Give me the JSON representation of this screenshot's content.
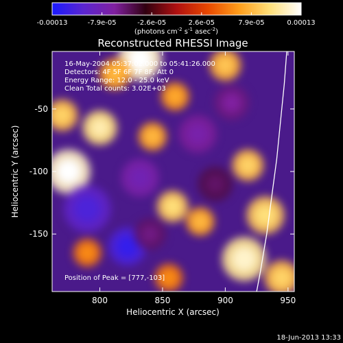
{
  "colorbar": {
    "tick_labels": [
      "-0.00013",
      "-7.9e-05",
      "-2.6e-05",
      "2.6e-05",
      "7.9e-05",
      "0.00013"
    ],
    "units_prefix": "(photons cm",
    "units_exp1": "-2",
    "units_mid": " s",
    "units_exp2": "-1",
    "units_mid2": " asec",
    "units_exp3": "-2",
    "units_suffix": ")",
    "range": [
      -0.00013,
      0.00013
    ],
    "stops": [
      "#1a1aff",
      "#5a25d0",
      "#8020a0",
      "#300010",
      "#b01010",
      "#e84800",
      "#ff9d1a",
      "#ffe07a",
      "#ffffff"
    ]
  },
  "chart_data": {
    "type": "heatmap",
    "title": "Reconstructed RHESSI Image",
    "xlabel": "Heliocentric X (arcsec)",
    "ylabel": "Heliocentric Y (arcsec)",
    "xlim": [
      762,
      955
    ],
    "ylim": [
      -196,
      -4
    ],
    "x_ticks": [
      800,
      850,
      900,
      950
    ],
    "y_ticks": [
      -50,
      -100,
      -150
    ],
    "annotations": [
      "16-May-2004 05:37:02.000 to 05:41:26.000",
      "Detectors: 4F 5F 6F 7F 8F, Att 0",
      "Energy Range: 12.0 - 25.0 keV",
      "Clean    Total counts: 3.02E+03"
    ],
    "peak_label": "Position of Peak = [777,-103]",
    "peak": [
      777,
      -103
    ],
    "limb_points": [
      [
        949,
        -4
      ],
      [
        947,
        -30
      ],
      [
        944,
        -60
      ],
      [
        941,
        -90
      ],
      [
        937,
        -120
      ],
      [
        933,
        -150
      ],
      [
        928,
        -180
      ],
      [
        925,
        -196
      ]
    ],
    "blobs": [
      {
        "x": 832,
        "y": -10,
        "v": 1.0,
        "r": 14
      },
      {
        "x": 775,
        "y": -100,
        "v": 1.0,
        "r": 14
      },
      {
        "x": 770,
        "y": -55,
        "v": 0.7,
        "r": 10
      },
      {
        "x": 800,
        "y": -65,
        "v": 0.85,
        "r": 11
      },
      {
        "x": 812,
        "y": -22,
        "v": 0.6,
        "r": 10
      },
      {
        "x": 860,
        "y": -40,
        "v": 0.55,
        "r": 9
      },
      {
        "x": 900,
        "y": -15,
        "v": 0.65,
        "r": 10
      },
      {
        "x": 842,
        "y": -72,
        "v": 0.6,
        "r": 9
      },
      {
        "x": 858,
        "y": -128,
        "v": 0.75,
        "r": 10
      },
      {
        "x": 880,
        "y": -140,
        "v": 0.6,
        "r": 9
      },
      {
        "x": 918,
        "y": -95,
        "v": 0.7,
        "r": 10
      },
      {
        "x": 932,
        "y": -135,
        "v": 0.75,
        "r": 12
      },
      {
        "x": 915,
        "y": -170,
        "v": 0.9,
        "r": 14
      },
      {
        "x": 945,
        "y": -185,
        "v": 0.7,
        "r": 11
      },
      {
        "x": 790,
        "y": -165,
        "v": 0.45,
        "r": 9
      },
      {
        "x": 855,
        "y": -185,
        "v": 0.45,
        "r": 9
      },
      {
        "x": 790,
        "y": -130,
        "v": -0.8,
        "r": 15
      },
      {
        "x": 822,
        "y": -160,
        "v": -0.9,
        "r": 12
      },
      {
        "x": 832,
        "y": -105,
        "v": -0.6,
        "r": 12
      },
      {
        "x": 878,
        "y": -70,
        "v": -0.55,
        "r": 12
      },
      {
        "x": 905,
        "y": -45,
        "v": -0.5,
        "r": 11
      },
      {
        "x": 840,
        "y": -150,
        "v": -0.45,
        "r": 10
      },
      {
        "x": 892,
        "y": -110,
        "v": -0.4,
        "r": 11
      }
    ]
  },
  "timestamp": "18-Jun-2013 13:33"
}
